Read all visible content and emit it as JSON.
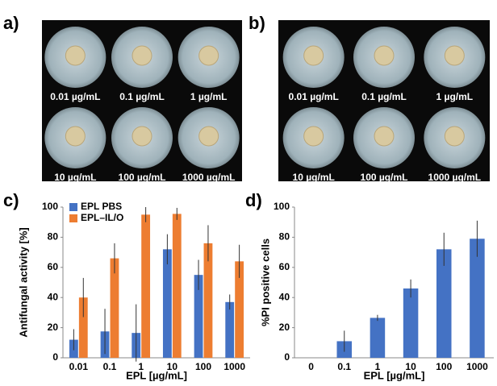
{
  "panels": {
    "a": {
      "letter": "a)",
      "labels": [
        "0.01 µg/mL",
        "0.1 µg/mL",
        "1 µg/mL",
        "10 µg/mL",
        "100 µg/mL",
        "1000 µg/mL"
      ]
    },
    "b": {
      "letter": "b)",
      "labels": [
        "0.01 µg/mL",
        "0.1 µg/mL",
        "1 µg/mL",
        "10 µg/mL",
        "100 µg/mL",
        "1000 µg/mL"
      ]
    }
  },
  "chart_data": [
    {
      "type": "bar",
      "letter": "c)",
      "x_label": "EPL [µg/mL]",
      "y_label": "Antifungal activity [%]",
      "categories": [
        "0.01",
        "0.1",
        "1",
        "10",
        "100",
        "1000"
      ],
      "series": [
        {
          "name": "EPL PBS",
          "color": "#4472c4",
          "values": [
            12,
            17.5,
            16.5,
            72,
            55,
            37
          ],
          "errors": [
            7,
            15,
            19,
            10,
            10,
            5
          ]
        },
        {
          "name": "EPL–IL/O",
          "color": "#ed7d31",
          "values": [
            40,
            66,
            95,
            95.5,
            76,
            64
          ],
          "errors": [
            13,
            10,
            5,
            4,
            12,
            11
          ]
        }
      ],
      "ylim": [
        0,
        100
      ],
      "yticks": [
        0,
        20,
        40,
        60,
        80,
        100
      ],
      "legend": "top-left"
    },
    {
      "type": "bar",
      "letter": "d)",
      "x_label": "EPL [µg/mL]",
      "y_label": "%PI positive cells",
      "categories": [
        "0",
        "0.1",
        "1",
        "10",
        "100",
        "1000"
      ],
      "series": [
        {
          "color": "#4472c4",
          "values": [
            0,
            11,
            26.5,
            46,
            72,
            79
          ],
          "errors": [
            0,
            7,
            2,
            6,
            11,
            12
          ]
        }
      ],
      "ylim": [
        0,
        100
      ],
      "yticks": [
        0,
        20,
        40,
        60,
        80,
        100
      ]
    }
  ]
}
